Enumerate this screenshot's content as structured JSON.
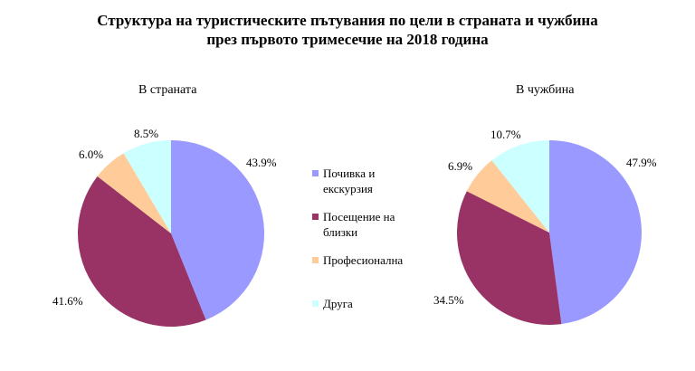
{
  "title": {
    "line1": "Структура на туристическите пътувания по цели в страната и чужбина",
    "line2": "през първото тримесечие на 2018 година"
  },
  "legend": [
    {
      "label": "Почивка и екскурзия",
      "color": "#9999ff"
    },
    {
      "label": "Посещение на близки",
      "color": "#993366"
    },
    {
      "label": "Професионална",
      "color": "#ffcc99"
    },
    {
      "label": "Друга",
      "color": "#ccffff"
    }
  ],
  "chart_data": [
    {
      "type": "pie",
      "title": "В страната",
      "categories": [
        "Почивка и екскурзия",
        "Посещение на близки",
        "Професионална",
        "Друга"
      ],
      "values": [
        43.9,
        41.6,
        6.0,
        8.5
      ],
      "labels": [
        "43.9%",
        "41.6%",
        "6.0%",
        "8.5%"
      ],
      "colors": [
        "#9999ff",
        "#993366",
        "#ffcc99",
        "#ccffff"
      ],
      "legend_position": "center"
    },
    {
      "type": "pie",
      "title": "В чужбина",
      "categories": [
        "Почивка и екскурзия",
        "Посещение на близки",
        "Професионална",
        "Друга"
      ],
      "values": [
        47.9,
        34.5,
        6.9,
        10.7
      ],
      "labels": [
        "47.9%",
        "34.5%",
        "6.9%",
        "10.7%"
      ],
      "colors": [
        "#9999ff",
        "#993366",
        "#ffcc99",
        "#ccffff"
      ],
      "legend_position": "center"
    }
  ]
}
